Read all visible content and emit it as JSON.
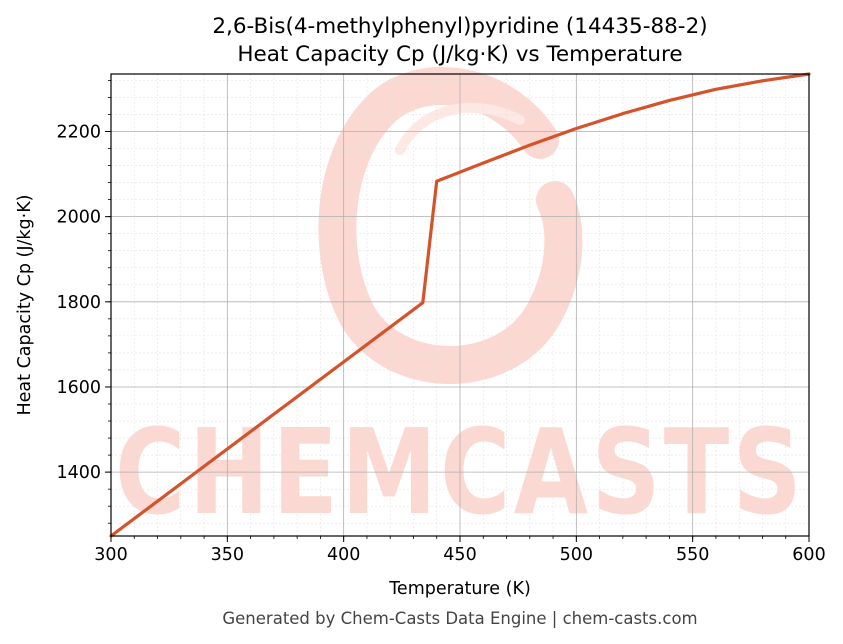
{
  "chart_data": {
    "type": "line",
    "title": "2,6-Bis(4-methylphenyl)pyridine (14435-88-2)",
    "subtitle": "Heat Capacity Cp (J/kg·K) vs Temperature",
    "xlabel": "Temperature (K)",
    "ylabel": "Heat Capacity Cp (J/kg·K)",
    "xlim": [
      300,
      600
    ],
    "ylim": [
      1250,
      2335
    ],
    "xticks": [
      300,
      350,
      400,
      450,
      500,
      550,
      600
    ],
    "yticks": [
      1400,
      1600,
      1800,
      2000,
      2200
    ],
    "grid": true,
    "line_color": "#d4532a",
    "series": [
      {
        "x": [
          300,
          434,
          440,
          460,
          480,
          500,
          520,
          540,
          560,
          580,
          600
        ],
        "y": [
          1250,
          1798,
          2083,
          2126,
          2168,
          2207,
          2242,
          2273,
          2299,
          2319,
          2335
        ]
      }
    ]
  },
  "watermark": {
    "text": "CHEMCASTS",
    "color": "#fbd9d2"
  },
  "footer": "Generated by Chem-Casts Data Engine | chem-casts.com"
}
